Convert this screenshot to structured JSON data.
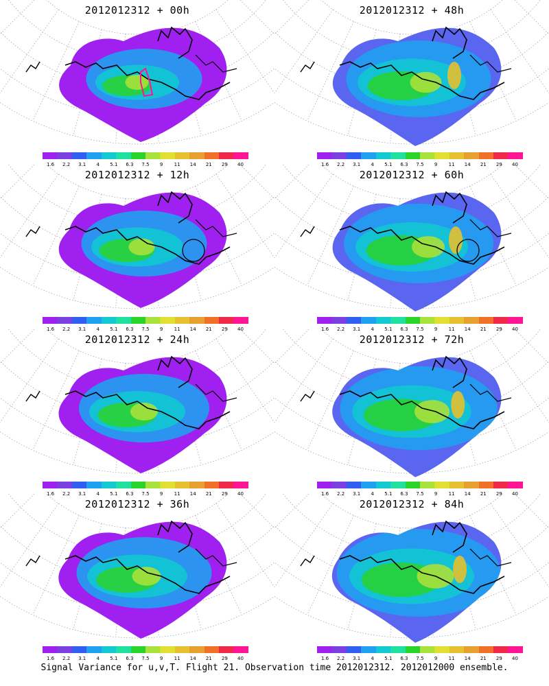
{
  "figure": {
    "footer": "Signal Variance for u,v,T. Flight 21. Observation time 2012012312. 2012012000 ensemble."
  },
  "colorbar": {
    "colors": [
      "#a020f0",
      "#7b3fe0",
      "#2f5ff0",
      "#1fa0f0",
      "#12c8d2",
      "#1ee0a0",
      "#2ad22a",
      "#a8e03c",
      "#e0e030",
      "#e6c030",
      "#e6a030",
      "#f07028",
      "#f0284a",
      "#ff1493"
    ],
    "labels": [
      "1.6",
      "2.2",
      "3.1",
      "4",
      "5.1",
      "6.3",
      "7.5",
      "9",
      "11",
      "14",
      "21",
      "29",
      "40"
    ]
  },
  "panels": [
    {
      "title": "2012012312 + 00h",
      "intensity": 0.35,
      "marker": "pink-polygon"
    },
    {
      "title": "2012012312 + 48h",
      "intensity": 0.65,
      "marker": "none"
    },
    {
      "title": "2012012312 + 12h",
      "intensity": 0.45,
      "marker": "circle"
    },
    {
      "title": "2012012312 + 60h",
      "intensity": 0.7,
      "marker": "circle"
    },
    {
      "title": "2012012312 + 24h",
      "intensity": 0.5,
      "marker": "none"
    },
    {
      "title": "2012012312 + 72h",
      "intensity": 0.78,
      "marker": "none"
    },
    {
      "title": "2012012312 + 36h",
      "intensity": 0.55,
      "marker": "none"
    },
    {
      "title": "2012012312 + 84h",
      "intensity": 0.85,
      "marker": "none"
    }
  ]
}
